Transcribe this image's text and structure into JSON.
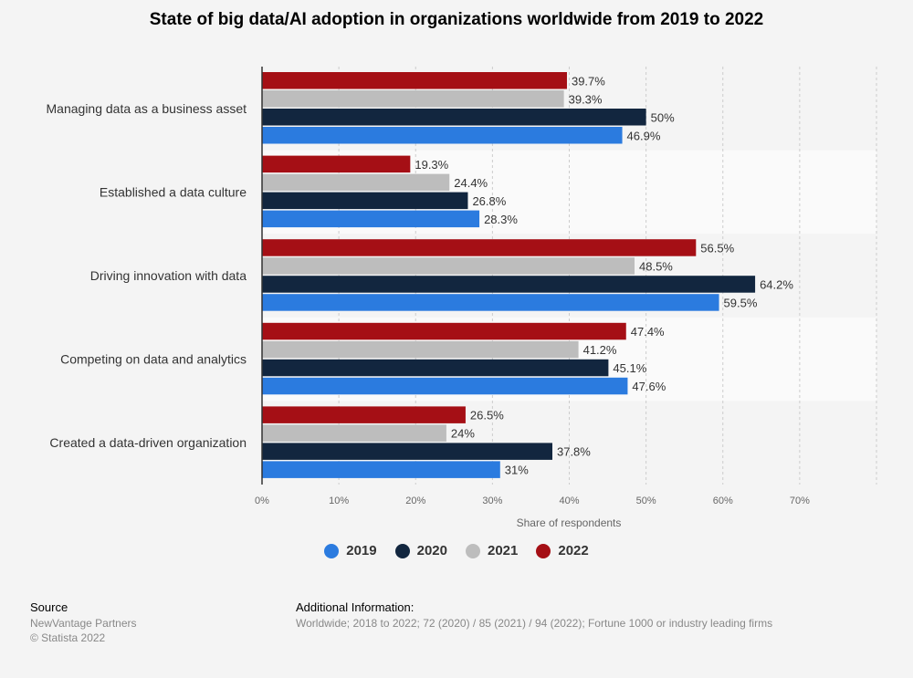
{
  "title": "State of big data/AI adoption in organizations worldwide from 2019 to 2022",
  "chart_data": {
    "type": "bar",
    "orientation": "horizontal",
    "categories": [
      "Managing data as a business asset",
      "Established a data culture",
      "Driving innovation with data",
      "Competing on data and analytics",
      "Created a data-driven organization"
    ],
    "series": [
      {
        "name": "2022",
        "color": "#a50f15",
        "values": [
          39.7,
          19.3,
          56.5,
          47.4,
          26.5
        ],
        "labels": [
          "39.7%",
          "19.3%",
          "56.5%",
          "47.4%",
          "26.5%"
        ]
      },
      {
        "name": "2021",
        "color": "#bdbdbd",
        "values": [
          39.3,
          24.4,
          48.5,
          41.2,
          24
        ],
        "labels": [
          "39.3%",
          "24.4%",
          "48.5%",
          "41.2%",
          "24%"
        ]
      },
      {
        "name": "2020",
        "color": "#12263f",
        "values": [
          50,
          26.8,
          64.2,
          45.1,
          37.8
        ],
        "labels": [
          "50%",
          "26.8%",
          "64.2%",
          "45.1%",
          "37.8%"
        ]
      },
      {
        "name": "2019",
        "color": "#2b7bdf",
        "values": [
          46.9,
          28.3,
          59.5,
          47.6,
          31
        ],
        "labels": [
          "46.9%",
          "28.3%",
          "59.5%",
          "47.6%",
          "31%"
        ]
      }
    ],
    "xlim": [
      0,
      80
    ],
    "xticks": [
      "0%",
      "10%",
      "20%",
      "30%",
      "40%",
      "50%",
      "60%",
      "70%"
    ],
    "xlabel": "Share of respondents",
    "legend_position": "bottom-center"
  },
  "legend": [
    {
      "name": "2019",
      "color": "#2b7bdf"
    },
    {
      "name": "2020",
      "color": "#12263f"
    },
    {
      "name": "2021",
      "color": "#bdbdbd"
    },
    {
      "name": "2022",
      "color": "#a50f15"
    }
  ],
  "footer": {
    "source_heading": "Source",
    "source_line1": "NewVantage Partners",
    "source_line2": "© Statista 2022",
    "info_heading": "Additional Information:",
    "info_text": "Worldwide; 2018 to 2022; 72 (2020) / 85 (2021) / 94 (2022); Fortune 1000 or industry leading firms"
  }
}
